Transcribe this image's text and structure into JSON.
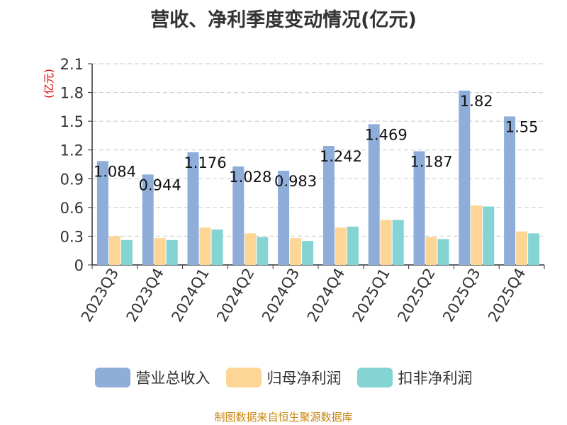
{
  "title": "营收、净利季度变动情况(亿元)",
  "source": "制图数据来自恒生聚源数据库",
  "chart_data": {
    "type": "bar",
    "title": "营收、净利季度变动情况(亿元)",
    "ylabel": "(亿元)",
    "xlabel": "",
    "ylim": [
      0,
      2.1
    ],
    "yticks": [
      "0",
      "0.3",
      "0.6",
      "0.9",
      "1.2",
      "1.5",
      "1.8",
      "2.1"
    ],
    "grid": true,
    "legend_position": "bottom",
    "categories": [
      "2023Q3",
      "2023Q4",
      "2024Q1",
      "2024Q2",
      "2024Q3",
      "2024Q4",
      "2025Q1",
      "2025Q2",
      "2025Q3",
      "2025Q4"
    ],
    "series": [
      {
        "name": "营业总收入",
        "color": "#8fadd9",
        "values": [
          1.084,
          0.944,
          1.176,
          1.028,
          0.983,
          1.242,
          1.469,
          1.187,
          1.82,
          1.55
        ]
      },
      {
        "name": "归母净利润",
        "color": "#fdd695",
        "values": [
          0.3,
          0.28,
          0.39,
          0.33,
          0.28,
          0.39,
          0.47,
          0.29,
          0.62,
          0.35
        ]
      },
      {
        "name": "扣非净利润",
        "color": "#85d4d4",
        "values": [
          0.26,
          0.26,
          0.37,
          0.29,
          0.25,
          0.4,
          0.47,
          0.27,
          0.61,
          0.33
        ]
      }
    ],
    "data_labels": [
      "1.084",
      "0.944",
      "1.176",
      "1.028",
      "0.983",
      "1.242",
      "1.469",
      "1.187",
      "1.82",
      "1.55"
    ]
  }
}
